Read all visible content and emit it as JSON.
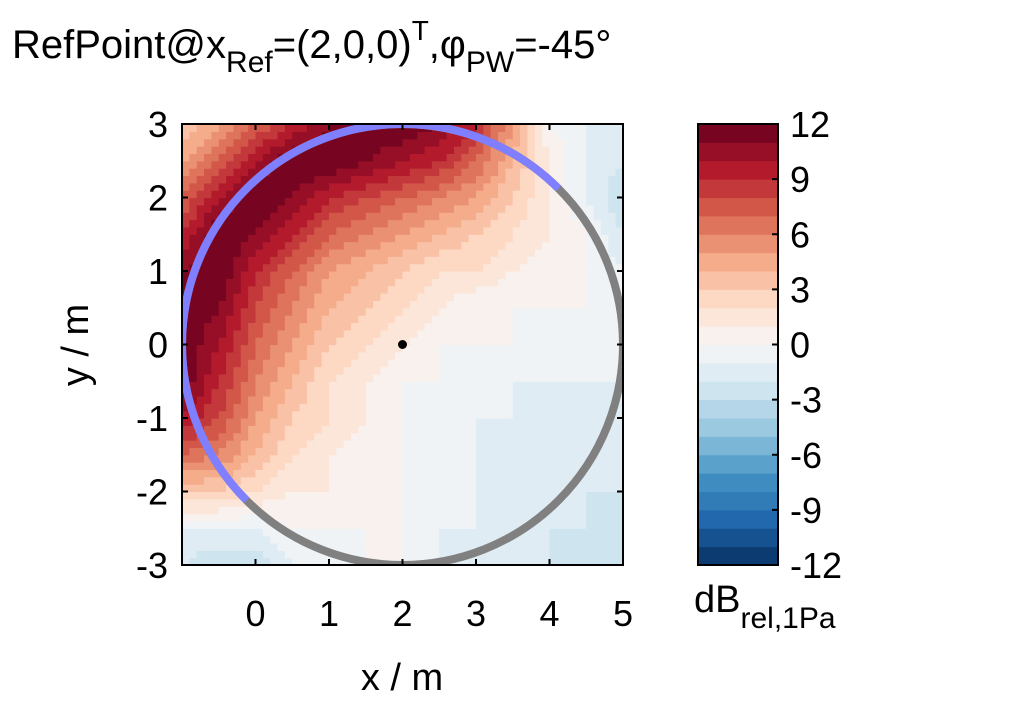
{
  "title": {
    "main": "RefPoint@x",
    "sub1": "Ref",
    "mid": "=(2,0,0)",
    "sup": "T",
    "comma": ",",
    "phi": "φ",
    "sub2": "PW",
    "end": "=-45°"
  },
  "chart_data": {
    "type": "heatmap",
    "xlabel": "x / m",
    "ylabel": "y / m",
    "xlim": [
      -1,
      5
    ],
    "ylim": [
      -3,
      3
    ],
    "xticks": [
      "0",
      "1",
      "2",
      "3",
      "4",
      "5"
    ],
    "yticks": [
      "3",
      "2",
      "1",
      "0",
      "-1",
      "-2",
      "-3"
    ],
    "grid_x": [
      -1,
      -0.5,
      0,
      0.5,
      1,
      1.5,
      2,
      2.5,
      3,
      3.5,
      4,
      4.5,
      5
    ],
    "grid_y": [
      3,
      2.5,
      2,
      1.5,
      1,
      0.5,
      0,
      -0.5,
      -1,
      -1.5,
      -2,
      -2.5,
      -3
    ],
    "values_db": [
      [
        3,
        5,
        7,
        9,
        11,
        12,
        12,
        11,
        9,
        5,
        0,
        -1,
        -2
      ],
      [
        5,
        7,
        10,
        12,
        12,
        11,
        10,
        9,
        7,
        4,
        1,
        -1,
        -2
      ],
      [
        7,
        10,
        12,
        11,
        9,
        8,
        7,
        6,
        5,
        3,
        1,
        -1,
        -3
      ],
      [
        9,
        12,
        11,
        9,
        7,
        6,
        5,
        4,
        3,
        2,
        1,
        0,
        -2
      ],
      [
        11,
        12,
        9,
        7,
        5,
        4,
        3,
        2,
        2,
        1,
        0,
        0,
        -1
      ],
      [
        12,
        11,
        8,
        6,
        4,
        3,
        2,
        1,
        0,
        0,
        0,
        0,
        -1
      ],
      [
        12,
        10,
        7,
        5,
        3,
        2,
        1,
        0,
        0,
        0,
        -1,
        -1,
        -1
      ],
      [
        12,
        9,
        6,
        4,
        2,
        1,
        0,
        0,
        -1,
        -1,
        -1,
        -1,
        -1
      ],
      [
        10,
        8,
        5,
        3,
        2,
        1,
        0,
        -1,
        -1,
        -1,
        -2,
        -2,
        -2
      ],
      [
        7,
        6,
        4,
        2,
        1,
        0,
        0,
        -1,
        -1,
        -2,
        -2,
        -2,
        -2
      ],
      [
        3,
        3,
        2,
        1,
        1,
        0,
        0,
        -1,
        -1,
        -2,
        -2,
        -2,
        -2
      ],
      [
        -1,
        -1,
        -1,
        0,
        0,
        0,
        0,
        -1,
        -1,
        -2,
        -2,
        -2,
        -3
      ],
      [
        -2,
        -3,
        -3,
        -1,
        -1,
        0,
        0,
        -1,
        -2,
        -2,
        -2,
        -3,
        -3
      ]
    ],
    "colorbar": {
      "range": [
        -12,
        12
      ],
      "step": 1,
      "ticks": [
        "12",
        "9",
        "6",
        "3",
        "0",
        "-3",
        "-6",
        "-9",
        "-12"
      ],
      "label_main": "dB",
      "label_sub": "rel,1Pa",
      "colormap": [
        "#053061",
        "#2166ac",
        "#4393c3",
        "#92c5de",
        "#d1e5f0",
        "#f7f7f7",
        "#fddbc7",
        "#f4a582",
        "#d6604d",
        "#b2182b",
        "#67001f"
      ]
    },
    "circle": {
      "center": [
        2,
        0
      ],
      "radius": 3,
      "color": "#808080",
      "active_color": "#7f7fff",
      "active_arc_deg": [
        45,
        225
      ]
    },
    "reference_point": [
      2,
      0
    ]
  }
}
